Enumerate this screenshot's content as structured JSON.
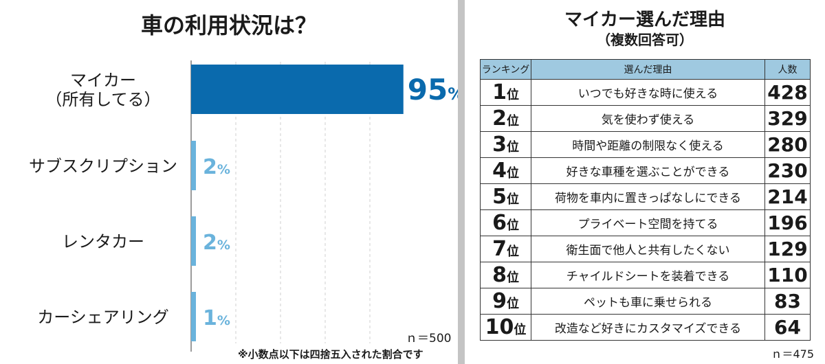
{
  "left": {
    "title": "車の利用状況は？",
    "n_label": "ｎ＝500",
    "note": "※小数点以下は四捨五入された割合です"
  },
  "chart_data": {
    "type": "bar",
    "orientation": "horizontal",
    "categories": [
      "マイカー（所有してる）",
      "サブスクリプション",
      "レンタカー",
      "カーシェアリング"
    ],
    "category_lines": [
      [
        "マイカー",
        "（所有してる）"
      ],
      [
        "サブスクリプション"
      ],
      [
        "レンタカー"
      ],
      [
        "カーシェアリング"
      ]
    ],
    "values": [
      95,
      2,
      2,
      1
    ],
    "value_unit": "%",
    "title": "車の利用状況は？",
    "xlim": [
      0,
      100
    ],
    "grid": "vertical dashed",
    "colors": [
      "#0a6aad",
      "#6ab3dc",
      "#6ab3dc",
      "#6ab3dc"
    ]
  },
  "right": {
    "title_line1": "マイカー選んだ理由",
    "title_line2": "（複数回答可）",
    "headers": [
      "ランキング",
      "選んだ理由",
      "人数"
    ],
    "rank_suffix": "位",
    "rows": [
      {
        "rank": "1",
        "reason": "いつでも好きな時に使える",
        "count": "428"
      },
      {
        "rank": "2",
        "reason": "気を使わず使える",
        "count": "329"
      },
      {
        "rank": "3",
        "reason": "時間や距離の制限なく使える",
        "count": "280"
      },
      {
        "rank": "4",
        "reason": "好きな車種を選ぶことができる",
        "count": "230"
      },
      {
        "rank": "5",
        "reason": "荷物を車内に置きっぱなしにできる",
        "count": "214"
      },
      {
        "rank": "6",
        "reason": "プライベート空間を持てる",
        "count": "196"
      },
      {
        "rank": "7",
        "reason": "衛生面で他人と共有したくない",
        "count": "129"
      },
      {
        "rank": "8",
        "reason": "チャイルドシートを装着できる",
        "count": "110"
      },
      {
        "rank": "9",
        "reason": "ペットも車に乗せられる",
        "count": "83"
      },
      {
        "rank": "10",
        "reason": "改造など好きにカスタマイズできる",
        "count": "64"
      }
    ],
    "n_label": "ｎ＝475",
    "header_color": "#9fc9e0"
  }
}
